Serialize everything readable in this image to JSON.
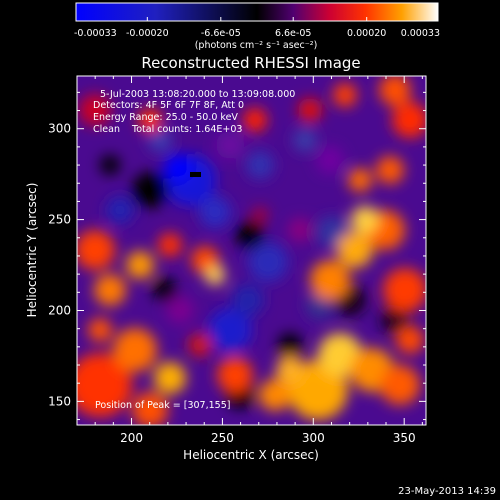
{
  "chart_data": {
    "type": "heatmap",
    "title": "Reconstructed RHESSI Image",
    "xlabel": "Heliocentric X (arcsec)",
    "ylabel": "Heliocentric Y (arcsec)",
    "xlim": [
      170,
      362
    ],
    "ylim": [
      137,
      329
    ],
    "x_ticks": [
      200,
      250,
      300,
      350
    ],
    "y_ticks": [
      150,
      200,
      250,
      300
    ],
    "annotations": [
      "5-Jul-2003 13:08:20.000 to 13:09:08.000",
      "Detectors: 4F 5F 6F 7F 8F, Att 0",
      "Energy Range: 25.0 - 50.0 keV",
      "Clean    Total counts: 1.64E+03"
    ],
    "peak_label": "Position of Peak = [307,155]",
    "peak": [
      307,
      155
    ],
    "colorbar": {
      "min": -0.00033,
      "max": 0.00033,
      "tick_labels": [
        "-0.00033",
        "-0.00020",
        "-6.6e-05",
        "6.6e-05",
        "0.00020",
        "0.00033"
      ],
      "tick_values": [
        -0.00033,
        -0.0002,
        -6.6e-05,
        6.6e-05,
        0.0002,
        0.00033
      ],
      "unit": "(photons cm⁻² s⁻¹ asec⁻²)"
    },
    "colormap": [
      "#0000ff",
      "#000000",
      "#8800cc",
      "#ff0000",
      "#ffb000",
      "#ffffff"
    ],
    "footer_date": "23-May-2013 14:39"
  }
}
